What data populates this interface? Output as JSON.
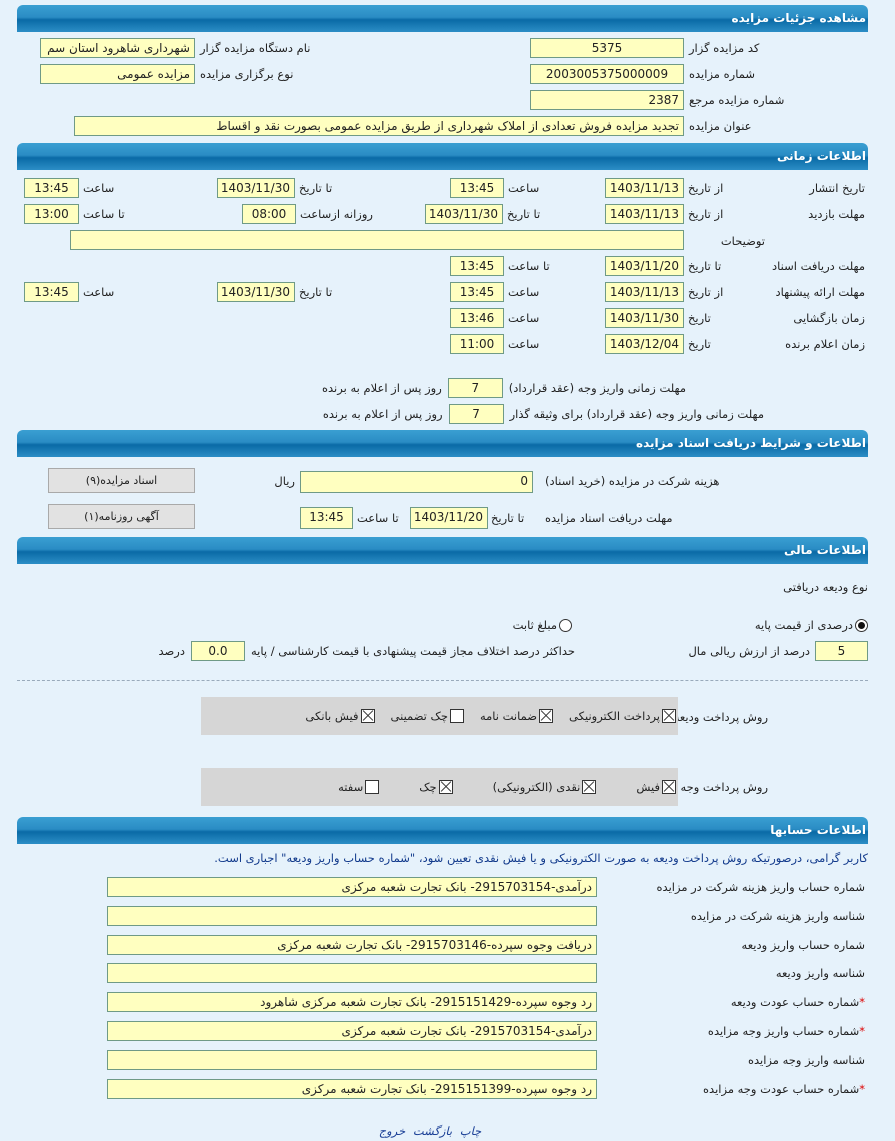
{
  "sections": {
    "details": "مشاهده جزئیات مزایده",
    "time": "اطلاعات زمانی",
    "docs": "اطلاعات و شرایط دریافت اسناد مزایده",
    "finance": "اطلاعات مالی",
    "accounts": "اطلاعات حسابها"
  },
  "details": {
    "auctioneer_code_label": "کد مزایده گزار",
    "auctioneer_code": "5375",
    "org_name_label": "نام دستگاه مزایده گزار",
    "org_name": "شهرداری شاهرود استان سم",
    "auction_number_label": "شماره مزایده",
    "auction_number": "2003005375000009",
    "type_label": "نوع برگزاری مزایده",
    "type": "مزایده عمومی",
    "ref_number_label": "شماره مزایده مرجع",
    "ref_number": "2387",
    "title_label": "عنوان مزایده",
    "title": "تجدید مزایده فروش تعدادی از املاک شهرداری از طریق مزایده عمومی بصورت نقد و اقساط"
  },
  "time": {
    "publish": {
      "label": "تاریخ انتشار",
      "from_label": "از تاریخ",
      "from": "1403/11/13",
      "time_label": "ساعت",
      "time": "13:45",
      "to_label": "تا تاریخ",
      "to": "1403/11/30",
      "to_time_label": "ساعت",
      "to_time": "13:45"
    },
    "visit": {
      "label": "مهلت بازدید",
      "from_label": "از تاریخ",
      "from": "1403/11/13",
      "to_label": "تا تاریخ",
      "to": "1403/11/30",
      "daily_label": "روزانه ازساعت",
      "daily_from": "08:00",
      "until_label": "تا ساعت",
      "until": "13:00"
    },
    "description_label": "توضیحات",
    "description": "",
    "docs": {
      "label": "مهلت دریافت اسناد",
      "to_label": "تا تاریخ",
      "to": "1403/11/20",
      "time_label": "تا ساعت",
      "time": "13:45"
    },
    "offer": {
      "label": "مهلت ارائه پیشنهاد",
      "from_label": "از تاریخ",
      "from": "1403/11/13",
      "time_label": "ساعت",
      "time": "13:45",
      "to_label": "تا تاریخ",
      "to": "1403/11/30",
      "to_time_label": "ساعت",
      "to_time": "13:45"
    },
    "opening": {
      "label": "زمان بازگشایی",
      "date_label": "تاریخ",
      "date": "1403/11/30",
      "time_label": "ساعت",
      "time": "13:46"
    },
    "winner": {
      "label": "زمان اعلام برنده",
      "date_label": "تاریخ",
      "date": "1403/12/04",
      "time_label": "ساعت",
      "time": "11:00"
    },
    "contract_label": "مهلت زمانی واریز وجه (عقد قرارداد)",
    "contract_days": "7",
    "contract_suffix": "روز پس از اعلام به برنده",
    "collateral_label": "مهلت زمانی واریز وجه (عقد قرارداد) برای وثیقه گذار",
    "collateral_days": "7",
    "collateral_suffix": "روز پس از اعلام به برنده"
  },
  "docs": {
    "fee_label": "هزینه شرکت در مزایده (خرید اسناد)",
    "fee": "0",
    "currency": "ریال",
    "deadline_label": "مهلت دریافت اسناد مزایده",
    "to_label": "تا تاریخ",
    "to": "1403/11/20",
    "time_label": "تا ساعت",
    "time": "13:45",
    "docs_button": "اسناد مزایده(۹)",
    "ad_button": "آگهی روزنامه(۱)"
  },
  "finance": {
    "deposit_type_label": "نوع ودیعه دریافتی",
    "percent_option": "درصدی از قیمت پایه",
    "percent_selected": true,
    "fixed_option": "مبلغ ثابت",
    "percent": "5",
    "percent_suffix": "درصد از ارزش ریالی مال",
    "max_diff_label": "حداکثر درصد اختلاف مجاز قیمت پیشنهادی با قیمت کارشناسی / پایه",
    "max_diff": "0.0",
    "max_diff_unit": "درصد",
    "deposit_method_label": "روش پرداخت ودیعه",
    "deposit_methods": [
      {
        "label": "پرداخت الکترونیکی",
        "checked": true
      },
      {
        "label": "ضمانت نامه",
        "checked": true
      },
      {
        "label": "چک تضمینی",
        "checked": false
      },
      {
        "label": "فیش بانکی",
        "checked": true
      }
    ],
    "payment_method_label": "روش پرداخت وجه مزایده",
    "payment_methods": [
      {
        "label": "فیش",
        "checked": true
      },
      {
        "label": "نقدی (الکترونیکی)",
        "checked": true
      },
      {
        "label": "چک",
        "checked": true
      },
      {
        "label": "سفته",
        "checked": false
      }
    ]
  },
  "accounts": {
    "notice": "کاربر گرامی، درصورتیکه روش پرداخت ودیعه به صورت الکترونیکی و یا فیش نقدی تعیین شود، \"شماره حساب واریز ودیعه\" اجباری است.",
    "rows": [
      {
        "label": "شماره حساب واریز هزینه شرکت در مزایده",
        "value": "درآمدی-2915703154- بانک تجارت شعبه مرکزی",
        "required": false
      },
      {
        "label": "شناسه واریز هزینه شرکت در مزایده",
        "value": "",
        "required": false
      },
      {
        "label": "شماره حساب واریز ودیعه",
        "value": "دریافت وجوه سپرده-2915703146- بانک تجارت شعبه مرکزی",
        "required": false
      },
      {
        "label": "شناسه واریز ودیعه",
        "value": "",
        "required": false
      },
      {
        "label": "شماره حساب عودت ودیعه",
        "value": "رد وجوه سپرده-2915151429- بانک تجارت شعبه مرکزی شاهرود",
        "required": true
      },
      {
        "label": "شماره حساب واریز وجه مزایده",
        "value": "درآمدی-2915703154- بانک تجارت شعبه مرکزی",
        "required": true
      },
      {
        "label": "شناسه واریز وجه مزایده",
        "value": "",
        "required": false
      },
      {
        "label": "شماره حساب عودت وجه مزایده",
        "value": "رد وجوه سپرده-2915151399- بانک تجارت شعبه مرکزی",
        "required": true
      }
    ],
    "required_mark": "*"
  },
  "footer": {
    "print": "چاپ",
    "back": "بازگشت",
    "exit": "خروج"
  }
}
